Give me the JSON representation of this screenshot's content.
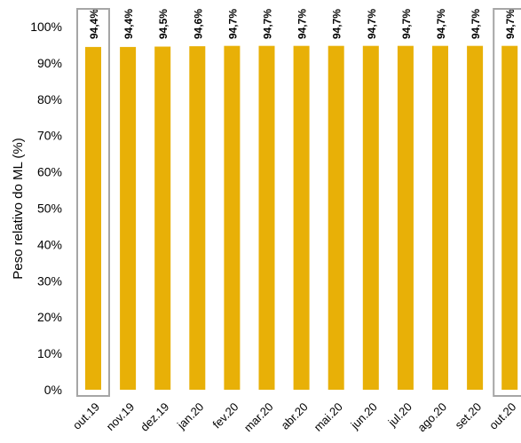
{
  "chart_data": {
    "type": "bar",
    "categories": [
      "out.19",
      "nov.19",
      "dez.19",
      "jan.20",
      "fev.20",
      "mar.20",
      "abr.20",
      "mai.20",
      "jun.20",
      "jul.20",
      "ago.20",
      "set.20",
      "out.20"
    ],
    "values": [
      94.4,
      94.4,
      94.5,
      94.6,
      94.7,
      94.7,
      94.7,
      94.7,
      94.7,
      94.7,
      94.7,
      94.7,
      94.7
    ],
    "data_labels": [
      "94,4%",
      "94,4%",
      "94,5%",
      "94,6%",
      "94,7%",
      "94,7%",
      "94,7%",
      "94,7%",
      "94,7%",
      "94,7%",
      "94,7%",
      "94,7%",
      "94,7%"
    ],
    "ylabel": "Peso relativo do ML (%)",
    "ylim": [
      0,
      100
    ],
    "yticks": [
      "0%",
      "10%",
      "20%",
      "30%",
      "40%",
      "50%",
      "60%",
      "70%",
      "80%",
      "90%",
      "100%"
    ],
    "grid": false,
    "bar_color": "#E8B007",
    "highlight_color": "#A6A6A6",
    "highlighted": [
      "out.19",
      "out.20"
    ]
  }
}
